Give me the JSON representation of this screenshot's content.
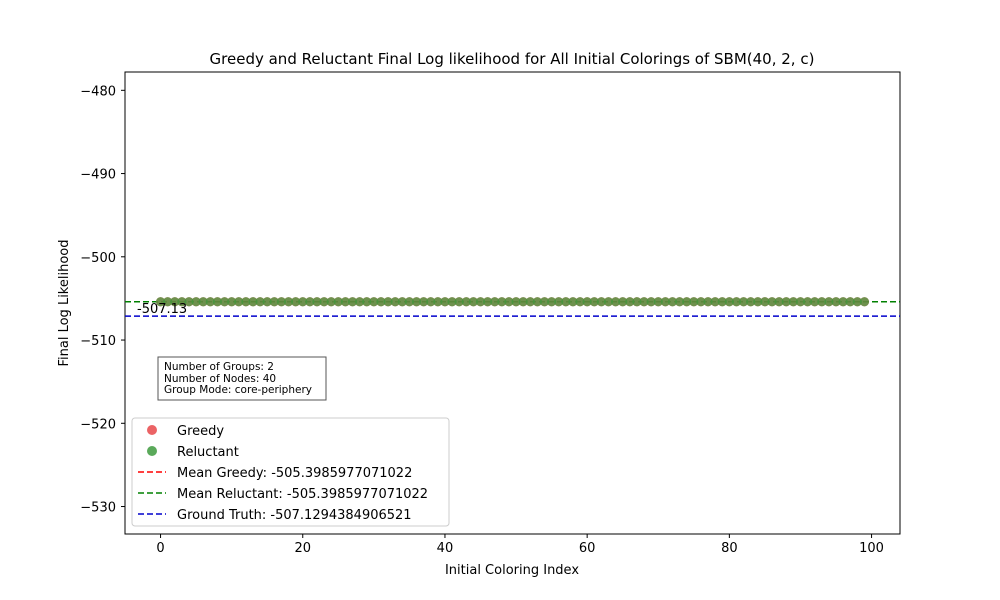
{
  "chart_data": {
    "type": "scatter",
    "title": "Greedy and Reluctant Final Log likelihood for All Initial Colorings of SBM(40, 2, c)",
    "xlabel": "Initial Coloring Index",
    "ylabel": "Final Log Likelihood",
    "xlim": [
      -5,
      104
    ],
    "ylim": [
      -533.3,
      -477.8
    ],
    "x_ticks": [
      0,
      20,
      40,
      60,
      80,
      100
    ],
    "y_ticks": [
      -480,
      -490,
      -500,
      -510,
      -520,
      -530
    ],
    "x_tick_labels": [
      "0",
      "20",
      "40",
      "60",
      "80",
      "100"
    ],
    "y_tick_labels": [
      "−480",
      "−490",
      "−500",
      "−510",
      "−520",
      "−530"
    ],
    "series": [
      {
        "name": "Greedy",
        "color": "#e8484a",
        "x_start": 0,
        "x_end": 99,
        "value": -505.3985977071022
      },
      {
        "name": "Reluctant",
        "color": "#3d9a3d",
        "x_start": 0,
        "x_end": 99,
        "value": -505.3985977071022
      }
    ],
    "reference_lines": [
      {
        "name": "Mean Greedy: -505.3985977071022",
        "value": -505.3985977071022,
        "color": "#ff0000"
      },
      {
        "name": "Mean Reluctant: -505.3985977071022",
        "value": -505.3985977071022,
        "color": "#008000"
      },
      {
        "name": "Ground Truth: -507.1294384906521",
        "value": -507.1294384906521,
        "color": "#0000cc"
      }
    ],
    "annotation": {
      "text": "-507.13",
      "color": "#0000cc"
    },
    "info_box": [
      "Number of Groups: 2",
      "Number of Nodes: 40",
      "Group Mode: core-periphery"
    ],
    "legend_position": "lower-left",
    "grid": false
  }
}
